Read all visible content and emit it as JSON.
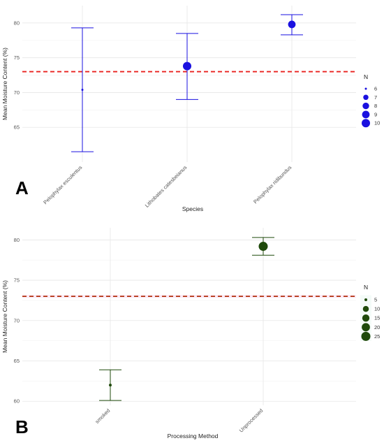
{
  "chart_data": [
    {
      "panel_label": "A",
      "type": "scatter",
      "subtype": "point-with-errorbars",
      "xlabel": "Species",
      "ylabel": "Mean Moisture Content (%)",
      "categories": [
        "Pelophylax esculentus",
        "Lithobates catesbeianus",
        "Pelophylax ridibundus"
      ],
      "points": [
        {
          "category": "Pelophylax esculentus",
          "mean": 70.4,
          "lower": 61.5,
          "upper": 79.3,
          "n": 6
        },
        {
          "category": "Lithobates catesbeianus",
          "mean": 73.8,
          "lower": 69.0,
          "upper": 78.5,
          "n": 10
        },
        {
          "category": "Pelophylax ridibundus",
          "mean": 79.8,
          "lower": 78.3,
          "upper": 81.2,
          "n": 9
        }
      ],
      "reference_line": {
        "y": 73.0,
        "color": "#e8211e",
        "style": "dashed"
      },
      "ylim": [
        60.0,
        82.5
      ],
      "yticks": [
        65,
        70,
        75,
        80
      ],
      "grid": true,
      "point_color": "#1a10e0",
      "legend": {
        "title": "N",
        "placement": "right",
        "entries": [
          {
            "label": "6",
            "n": 6
          },
          {
            "label": "7",
            "n": 7
          },
          {
            "label": "8",
            "n": 8
          },
          {
            "label": "9",
            "n": 9
          },
          {
            "label": "10",
            "n": 10
          }
        ]
      }
    },
    {
      "panel_label": "B",
      "type": "scatter",
      "subtype": "point-with-errorbars",
      "xlabel": "Processing Method",
      "ylabel": "Mean Moisture Content (%)",
      "categories": [
        "smoked",
        "Unprocessed"
      ],
      "points": [
        {
          "category": "smoked",
          "mean": 62.0,
          "lower": 60.1,
          "upper": 63.9,
          "n": 5
        },
        {
          "category": "Unprocessed",
          "mean": 79.2,
          "lower": 78.1,
          "upper": 80.3,
          "n": 25
        }
      ],
      "reference_line": {
        "y": 73.0,
        "color": "#b3330e",
        "style": "dashed"
      },
      "ylim": [
        59.5,
        81.5
      ],
      "yticks": [
        60,
        65,
        70,
        75,
        80
      ],
      "grid": true,
      "point_color": "#1f4a0b",
      "legend": {
        "title": "N",
        "placement": "right",
        "entries": [
          {
            "label": "5",
            "n": 5
          },
          {
            "label": "10",
            "n": 10
          },
          {
            "label": "15",
            "n": 15
          },
          {
            "label": "20",
            "n": 20
          },
          {
            "label": "25",
            "n": 25
          }
        ]
      }
    }
  ]
}
